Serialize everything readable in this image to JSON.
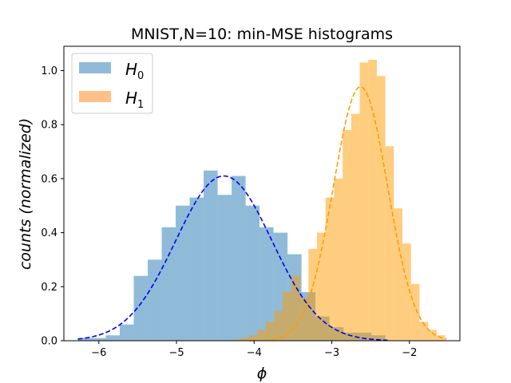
{
  "chart_data": {
    "type": "bar",
    "title": "MNIST,N=10: min-MSE histograms",
    "xlabel": "ϕ",
    "ylabel": "counts (normalized)",
    "xlim": [
      -6.45,
      -1.35
    ],
    "ylim": [
      0,
      1.09
    ],
    "xticks": [
      -6,
      -5,
      -4,
      -3,
      -2
    ],
    "xtick_labels": [
      "−6",
      "−5",
      "−4",
      "−3",
      "−2"
    ],
    "yticks": [
      0.0,
      0.2,
      0.4,
      0.6,
      0.8,
      1.0
    ],
    "ytick_labels": [
      "0.0",
      "0.2",
      "0.4",
      "0.6",
      "0.8",
      "1.0"
    ],
    "grid": false,
    "legend_position": "top-left",
    "series": [
      {
        "name": "H",
        "name_subscript": "0",
        "color": "#1f77b4",
        "fill_color": "#8fbbd9",
        "bin_edges": [
          -6.27,
          -6.09,
          -5.91,
          -5.73,
          -5.55,
          -5.37,
          -5.19,
          -5.01,
          -4.83,
          -4.65,
          -4.47,
          -4.29,
          -4.11,
          -3.93,
          -3.75,
          -3.57,
          -3.39,
          -3.21,
          -3.03,
          -2.85,
          -2.67,
          -2.49,
          -2.31
        ],
        "counts": [
          0.01,
          0.01,
          0.02,
          0.06,
          0.24,
          0.3,
          0.42,
          0.5,
          0.53,
          0.63,
          0.54,
          0.61,
          0.5,
          0.42,
          0.4,
          0.32,
          0.18,
          0.09,
          0.05,
          0.03,
          0.03,
          0.02
        ],
        "fit_curve": {
          "style": "dashed",
          "mean": -4.39,
          "std": 0.62,
          "peak": 0.61,
          "x_range": [
            -6.27,
            -2.28
          ]
        }
      },
      {
        "name": "H",
        "name_subscript": "1",
        "color": "#ff9c00",
        "fill_color": "#ffbf86",
        "bin_edges": [
          -4.29,
          -4.18,
          -4.07,
          -3.96,
          -3.85,
          -3.74,
          -3.63,
          -3.52,
          -3.41,
          -3.3,
          -3.19,
          -3.08,
          -2.97,
          -2.86,
          -2.75,
          -2.64,
          -2.53,
          -2.42,
          -2.31,
          -2.2,
          -2.09,
          -1.98,
          -1.87,
          -1.76,
          -1.65,
          -1.54
        ],
        "counts": [
          0.005,
          0.01,
          0.02,
          0.04,
          0.07,
          0.11,
          0.18,
          0.24,
          0.16,
          0.34,
          0.4,
          0.53,
          0.6,
          0.78,
          0.84,
          1.03,
          1.04,
          0.98,
          0.72,
          0.49,
          0.36,
          0.21,
          0.07,
          0.04,
          0.02
        ],
        "fit_curve": {
          "style": "dashed",
          "mean": -2.63,
          "std": 0.35,
          "peak": 0.94,
          "x_range": [
            -4.05,
            -1.52
          ]
        }
      }
    ]
  }
}
